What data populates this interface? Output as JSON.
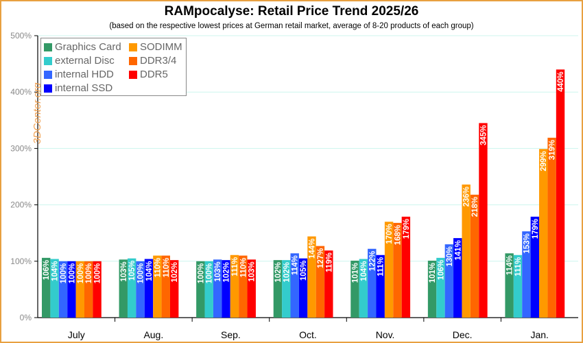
{
  "title": "RAMpocalyse: Retail Price Trend 2025/26",
  "subtitle": "(based on the respective lowest prices at German retail market, average of 8-20 products of each group)",
  "watermark": "3DCenter.org",
  "chart_data": {
    "type": "bar",
    "title": "RAMpocalyse: Retail Price Trend 2025/26",
    "subtitle": "(based on the respective lowest prices at German retail market, average of 8-20 products of each group)",
    "xlabel": "",
    "ylabel": "",
    "ylim": [
      0,
      500
    ],
    "yticks": [
      "0%",
      "100%",
      "200%",
      "300%",
      "400%",
      "500%"
    ],
    "grid": true,
    "legend_position": "upper-left",
    "categories": [
      "July",
      "Aug.",
      "Sep.",
      "Oct.",
      "Nov.",
      "Dec.",
      "Jan."
    ],
    "series": [
      {
        "name": "Graphics Card",
        "color": "#339966",
        "values": [
          106,
          103,
          100,
          102,
          101,
          101,
          114
        ]
      },
      {
        "name": "external Disc",
        "color": "#33cccc",
        "values": [
          104,
          105,
          100,
          102,
          104,
          106,
          111
        ]
      },
      {
        "name": "internal HDD",
        "color": "#3366ff",
        "values": [
          100,
          100,
          103,
          114,
          122,
          130,
          153
        ]
      },
      {
        "name": "internal SSD",
        "color": "#0000ff",
        "values": [
          100,
          104,
          102,
          105,
          111,
          141,
          179
        ]
      },
      {
        "name": "SODIMM",
        "color": "#ff9900",
        "values": [
          100,
          110,
          111,
          144,
          170,
          236,
          299
        ]
      },
      {
        "name": "DDR3/4",
        "color": "#ff6600",
        "values": [
          100,
          110,
          110,
          127,
          168,
          218,
          319
        ]
      },
      {
        "name": "DDR5",
        "color": "#ff0000",
        "values": [
          100,
          102,
          103,
          119,
          179,
          345,
          440
        ]
      }
    ]
  },
  "legend": [
    {
      "label": "Graphics Card",
      "color": "#339966"
    },
    {
      "label": "external Disc",
      "color": "#33cccc"
    },
    {
      "label": "internal HDD",
      "color": "#3366ff"
    },
    {
      "label": "internal SSD",
      "color": "#0000ff"
    },
    {
      "label": "SODIMM",
      "color": "#ff9900"
    },
    {
      "label": "DDR3/4",
      "color": "#ff6600"
    },
    {
      "label": "DDR5",
      "color": "#ff0000"
    }
  ]
}
